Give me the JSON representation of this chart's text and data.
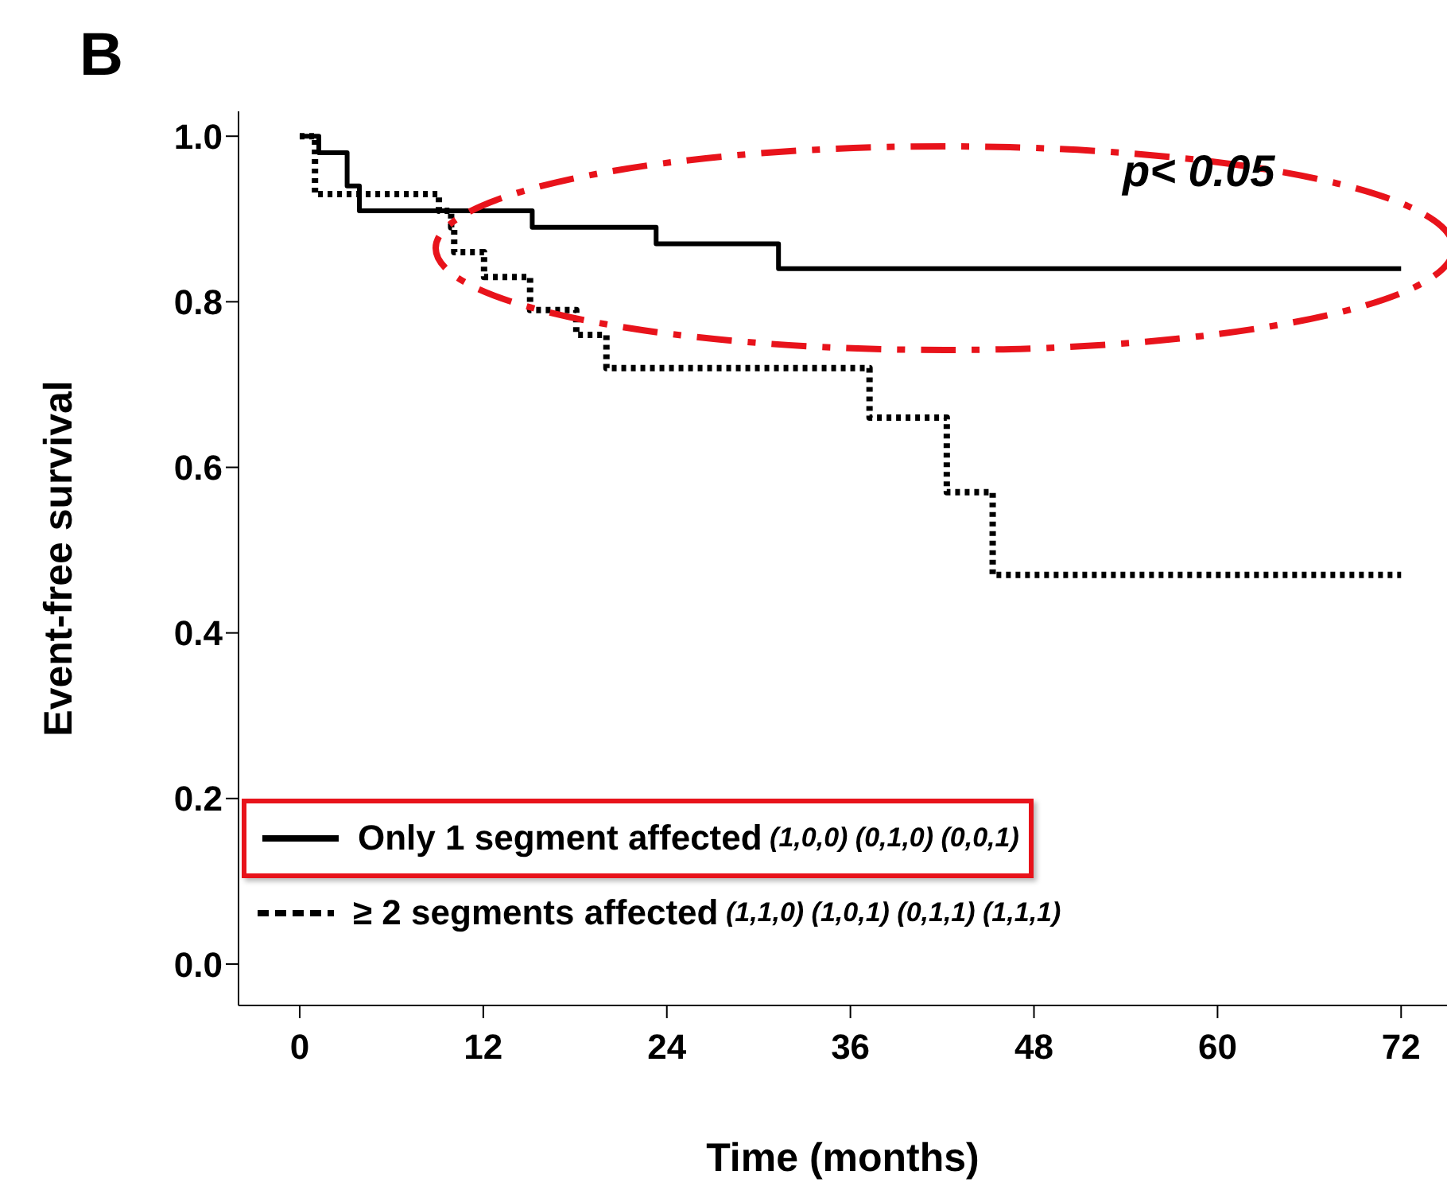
{
  "chart_data": {
    "type": "step",
    "title": "B",
    "xlabel": "Time (months)",
    "ylabel": "Event-free survival",
    "series": [
      {
        "name": "Only 1 segment affected (1,0,0) (0,1,0) (0,0,1)",
        "color": "#000000",
        "line_style": "solid",
        "x": [
          0,
          1.25,
          3.1,
          3.9,
          15.2,
          23.3,
          31.3,
          72
        ],
        "values": [
          1.0,
          0.98,
          0.94,
          0.91,
          0.89,
          0.87,
          0.84,
          0.84
        ]
      },
      {
        "name": "≥ 2 segments affected (1,1,0) (1,0,1) (0,1,1) (1,1,1)",
        "color": "#000000",
        "line_style": "dotted",
        "x": [
          0,
          1,
          9.1,
          9.9,
          10.1,
          12.05,
          15.06,
          18.08,
          20.05,
          37.25,
          42.3,
          45.3,
          72
        ],
        "values": [
          1.0,
          0.93,
          0.91,
          0.89,
          0.86,
          0.83,
          0.79,
          0.76,
          0.72,
          0.66,
          0.57,
          0.47,
          0.47
        ]
      }
    ],
    "xlim": [
      -4,
      75
    ],
    "xticks": [
      0,
      12,
      24,
      36,
      48,
      60,
      72
    ],
    "ylim": [
      -0.05,
      1.03
    ],
    "yticks": [
      {
        "value": 0,
        "label": "0.0"
      },
      0.2,
      0.4,
      0.6,
      0.8,
      {
        "value": 1,
        "label": "1.0"
      }
    ],
    "grid": false,
    "legend": "bottom left",
    "marker": "none",
    "annotations": [
      "p< 0.05"
    ]
  }
}
